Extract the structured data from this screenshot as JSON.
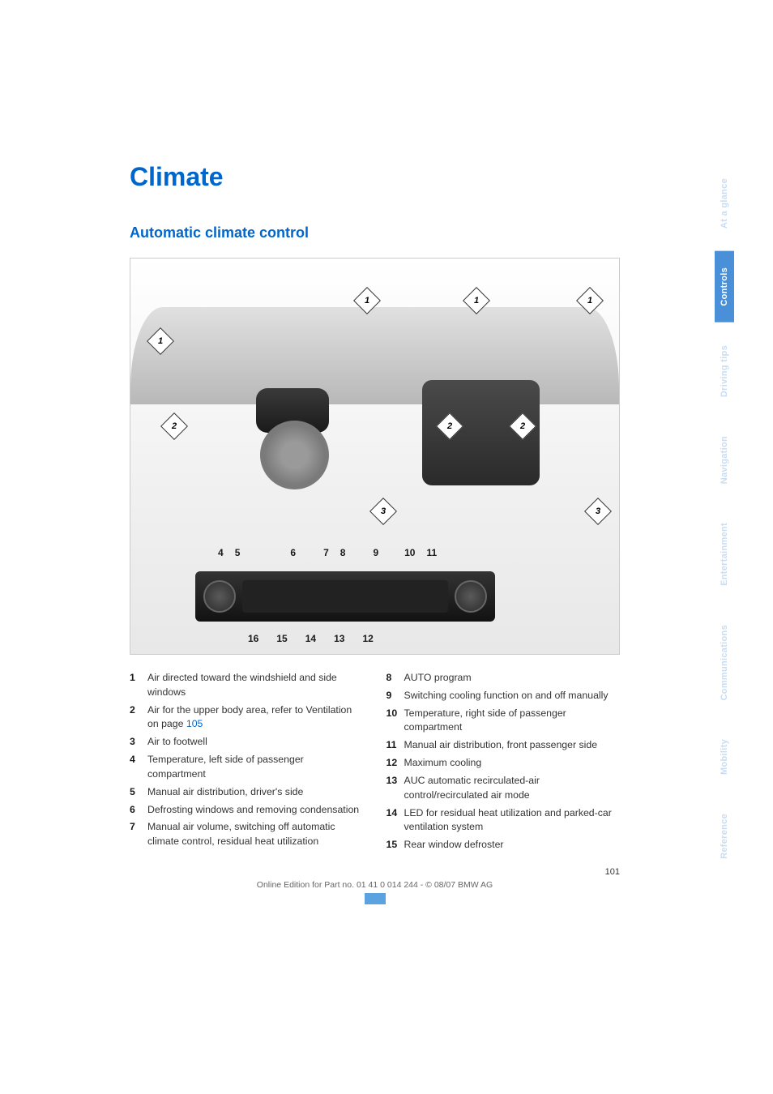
{
  "title": "Climate",
  "subtitle": "Automatic climate control",
  "diagram": {
    "top_callouts": [
      "4",
      "5",
      "6",
      "7",
      "8",
      "9",
      "10",
      "11"
    ],
    "bottom_callouts": [
      "16",
      "15",
      "14",
      "13",
      "12"
    ],
    "arrow_labels": [
      "1",
      "1",
      "1",
      "1",
      "2",
      "2",
      "2",
      "3",
      "3"
    ],
    "colors": {
      "bg_gradient_top": "#ffffff",
      "bg_gradient_bottom": "#e8e8e8",
      "panel_dark": "#1a1a1a",
      "dash": "#b8b8b8"
    }
  },
  "left_list": [
    {
      "n": "1",
      "text": "Air directed toward the windshield and side windows"
    },
    {
      "n": "2",
      "text": "Air for the upper body area, refer to Ventilation on page ",
      "xref": "105"
    },
    {
      "n": "3",
      "text": "Air to footwell"
    },
    {
      "n": "4",
      "text": "Temperature, left side of passenger compartment"
    },
    {
      "n": "5",
      "text": "Manual air distribution, driver's side"
    },
    {
      "n": "6",
      "text": "Defrosting windows and removing condensation"
    },
    {
      "n": "7",
      "text": "Manual air volume, switching off automatic climate control, residual heat utilization"
    }
  ],
  "right_list": [
    {
      "n": "8",
      "text": "AUTO program"
    },
    {
      "n": "9",
      "text": "Switching cooling function on and off manually"
    },
    {
      "n": "10",
      "text": "Temperature, right side of passenger compartment"
    },
    {
      "n": "11",
      "text": "Manual air distribution, front passenger side"
    },
    {
      "n": "12",
      "text": "Maximum cooling"
    },
    {
      "n": "13",
      "text": "AUC automatic recirculated-air control/recirculated air mode"
    },
    {
      "n": "14",
      "text": "LED for residual heat utilization and parked-car ventilation system"
    },
    {
      "n": "15",
      "text": "Rear window defroster"
    }
  ],
  "page_number": "101",
  "footer": "Online Edition for Part no. 01 41 0 014 244 - © 08/07 BMW AG",
  "tabs": [
    {
      "label": "At a glance",
      "active": false
    },
    {
      "label": "Controls",
      "active": true
    },
    {
      "label": "Driving tips",
      "active": false
    },
    {
      "label": "Navigation",
      "active": false
    },
    {
      "label": "Entertainment",
      "active": false
    },
    {
      "label": "Communications",
      "active": false
    },
    {
      "label": "Mobility",
      "active": false
    },
    {
      "label": "Reference",
      "active": false
    }
  ],
  "colors": {
    "heading_blue": "#0066cc",
    "link_blue": "#0066cc",
    "tab_active_bg": "#4a90d9",
    "tab_inactive_text": "#c8ddf2",
    "body_text": "#333333"
  },
  "typography": {
    "title_size": 32,
    "subtitle_size": 18,
    "body_size": 12.3,
    "tab_size": 11
  }
}
